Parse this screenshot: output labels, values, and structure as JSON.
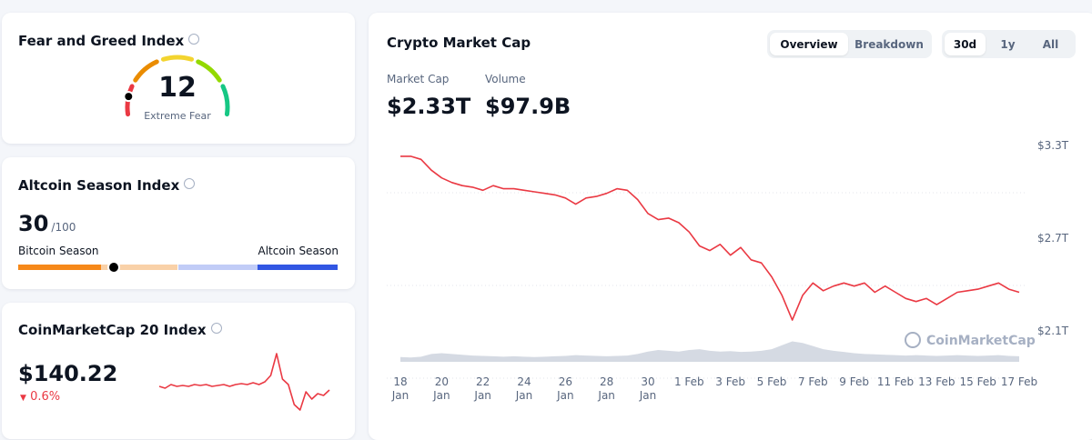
{
  "fear_greed": {
    "title": "Fear and Greed Index",
    "value": 12,
    "label": "Extreme Fear",
    "max": 100
  },
  "altcoin_season": {
    "title": "Altcoin Season Index",
    "value": 30,
    "max": 100,
    "max_label": "/100",
    "left_label": "Bitcoin Season",
    "right_label": "Altcoin Season"
  },
  "cmc20": {
    "title": "CoinMarketCap 20 Index",
    "price": "$140.22",
    "change": "0.6%",
    "chart_data": {
      "type": "line",
      "color": "#ea3943",
      "ylim": [
        125,
        160
      ],
      "values": [
        140,
        139,
        141,
        140,
        140.5,
        140,
        141,
        140.5,
        141,
        140,
        140.5,
        141,
        140,
        141,
        141.5,
        141,
        142,
        141,
        142.5,
        146,
        158,
        144,
        141,
        130,
        127,
        137,
        133,
        136,
        135,
        138
      ]
    }
  },
  "market": {
    "title": "Crypto Market Cap",
    "tabs": [
      "Overview",
      "Breakdown"
    ],
    "active_tab": 0,
    "ranges": [
      "30d",
      "1y",
      "All"
    ],
    "active_range": 0,
    "market_cap_label": "Market Cap",
    "market_cap": "$2.33T",
    "volume_label": "Volume",
    "volume": "$97.9B",
    "watermark": "CoinMarketCap",
    "chart_data": {
      "type": "line",
      "color": "#ea3943",
      "volume_color": "#d5dae3",
      "categories": [
        "18\nJan",
        null,
        null,
        null,
        "20\nJan",
        null,
        null,
        null,
        "22\nJan",
        null,
        null,
        null,
        "24\nJan",
        null,
        null,
        null,
        "26\nJan",
        null,
        null,
        null,
        "28\nJan",
        null,
        null,
        null,
        "30\nJan",
        null,
        null,
        null,
        "1 Feb",
        null,
        null,
        null,
        "3 Feb",
        null,
        null,
        null,
        "5 Feb",
        null,
        null,
        null,
        "7 Feb",
        null,
        null,
        null,
        "9 Feb",
        null,
        null,
        null,
        "11 Feb",
        null,
        null,
        null,
        "13 Feb",
        null,
        null,
        null,
        "15 Feb",
        null,
        null,
        null,
        "17 Feb"
      ],
      "values": [
        3.23,
        3.23,
        3.21,
        3.14,
        3.09,
        3.06,
        3.04,
        3.03,
        3.01,
        3.04,
        3.02,
        3.02,
        3.01,
        3.0,
        2.99,
        2.98,
        2.96,
        2.92,
        2.96,
        2.97,
        2.99,
        3.02,
        3.01,
        2.95,
        2.86,
        2.82,
        2.83,
        2.8,
        2.74,
        2.65,
        2.62,
        2.66,
        2.59,
        2.64,
        2.56,
        2.54,
        2.45,
        2.33,
        2.17,
        2.33,
        2.41,
        2.36,
        2.39,
        2.41,
        2.39,
        2.41,
        2.35,
        2.39,
        2.35,
        2.31,
        2.29,
        2.31,
        2.27,
        2.31,
        2.35,
        2.36,
        2.37,
        2.39,
        2.41,
        2.37,
        2.35
      ],
      "volume": [
        120,
        110,
        130,
        200,
        220,
        200,
        180,
        160,
        150,
        140,
        130,
        140,
        130,
        120,
        130,
        140,
        150,
        170,
        160,
        150,
        140,
        150,
        160,
        200,
        260,
        300,
        280,
        260,
        300,
        320,
        280,
        260,
        270,
        250,
        260,
        280,
        320,
        420,
        520,
        480,
        400,
        320,
        280,
        250,
        220,
        200,
        190,
        180,
        170,
        160,
        170,
        160,
        150,
        160,
        170,
        160,
        150,
        160,
        170,
        150,
        140
      ],
      "vlim": [
        0,
        600
      ],
      "ylim": [
        2.05,
        3.35
      ],
      "yticks": [
        {
          "value": 3.3,
          "label": "$3.3T"
        },
        {
          "value": 2.7,
          "label": "$2.7T"
        },
        {
          "value": 2.1,
          "label": "$2.1T"
        }
      ],
      "grid": true
    }
  }
}
